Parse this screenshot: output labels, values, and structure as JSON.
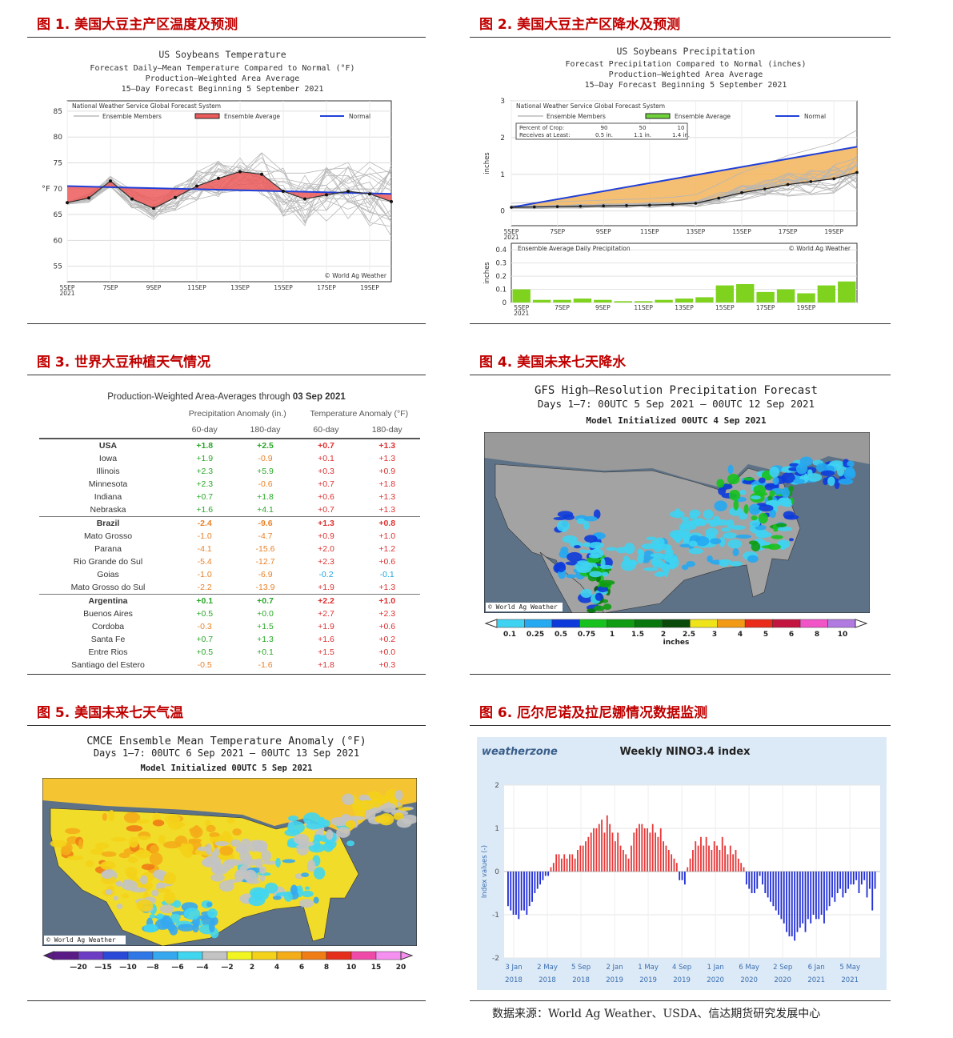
{
  "panels": {
    "p1": {
      "title": "图 1.  美国大豆主产区温度及预测"
    },
    "p2": {
      "title": "图 2.  美国大豆主产区降水及预测"
    },
    "p3": {
      "title": "图 3.  世界大豆种植天气情况"
    },
    "p4": {
      "title": "图 4.  美国未来七天降水"
    },
    "p5": {
      "title": "图 5.  美国未来七天气温"
    },
    "p6": {
      "title": "图 6.  厄尔尼诺及拉尼娜情况数据监测"
    }
  },
  "source": "数据来源：World Ag Weather、USDA、信达期货研究发展中心",
  "chart_data": [
    {
      "id": "temp",
      "type": "line",
      "title": "US Soybeans Temperature",
      "subtitle_lines": [
        "Forecast Daily—Mean Temperature Compared to Normal (°F)",
        "Production—Weighted Area Average",
        "15—Day Forecast Beginning 5 September 2021"
      ],
      "box_label": "National Weather Service Global Forecast System",
      "legend": {
        "members": "Ensemble Members",
        "average": "Ensemble Average",
        "normal": "Normal"
      },
      "credit": "© World Ag Weather",
      "ylabel": "°F",
      "ylim": [
        52,
        87
      ],
      "yticks": [
        "55",
        "60",
        "65",
        "70",
        "75",
        "80",
        "85"
      ],
      "xticks": [
        "5SEP",
        "7SEP",
        "9SEP",
        "11SEP",
        "13SEP",
        "15SEP",
        "17SEP",
        "19SEP"
      ],
      "xtick_year": "2021",
      "days": [
        0,
        1,
        2,
        3,
        4,
        5,
        6,
        7,
        8,
        9,
        10,
        11,
        12,
        13,
        14,
        15
      ],
      "average": [
        67.3,
        68.2,
        71.5,
        68.0,
        66.2,
        68.3,
        70.5,
        72.0,
        73.3,
        72.8,
        69.5,
        68.0,
        68.8,
        69.5,
        69.0,
        67.5
      ],
      "normal": [
        70.5,
        69.0
      ]
    },
    {
      "id": "precip",
      "type": "line",
      "title": "US Soybeans Precipitation",
      "subtitle_lines": [
        "Forecast Precipitation Compared to Normal (inches)",
        "Production—Weighted Area Average",
        "15—Day Forecast Beginning 5 September 2021"
      ],
      "box_label": "National Weather Service Global Forecast System",
      "legend": {
        "members": "Ensemble Members",
        "average": "Ensemble Average",
        "normal": "Normal"
      },
      "crop_table": {
        "row1_label": "Percent of Crop:",
        "row1": [
          "90",
          "50",
          "10"
        ],
        "row2_label": "Receives at Least:",
        "row2": [
          "0.5 in.",
          "1.1 in.",
          "1.4 in."
        ]
      },
      "ylabel": "inches",
      "ylim": [
        -0.4,
        3
      ],
      "yticks": [
        "0",
        "1",
        "2",
        "3"
      ],
      "xticks": [
        "5SEP",
        "7SEP",
        "9SEP",
        "11SEP",
        "13SEP",
        "15SEP",
        "17SEP",
        "19SEP"
      ],
      "xtick_year": "2021",
      "average": [
        0.1,
        0.11,
        0.12,
        0.13,
        0.14,
        0.15,
        0.16,
        0.18,
        0.21,
        0.35,
        0.5,
        0.6,
        0.72,
        0.8,
        0.88,
        1.05
      ],
      "normal": [
        0.1,
        1.75
      ],
      "daily": {
        "label": "Ensemble Average Daily Precipitation",
        "credit": "© World Ag Weather",
        "ylabel": "inches",
        "ylim": [
          0,
          0.45
        ],
        "yticks": [
          "0",
          "0.1",
          "0.2",
          "0.3",
          "0.4"
        ],
        "values": [
          0.1,
          0.02,
          0.02,
          0.03,
          0.02,
          0.01,
          0.01,
          0.02,
          0.03,
          0.04,
          0.13,
          0.14,
          0.08,
          0.1,
          0.07,
          0.13,
          0.16
        ]
      }
    },
    {
      "id": "anomaly",
      "type": "table",
      "title_prefix": "Production-Weighted Area-Averages through",
      "title_date": "03 Sep 2021",
      "group_headers": [
        "Precipitation Anomaly (in.)",
        "Temperature Anomaly (°F)"
      ],
      "columns": [
        "60-day",
        "180-day",
        "60-day",
        "180-day"
      ],
      "rows": [
        {
          "name": "USA",
          "v": [
            "+1.8",
            "+2.5",
            "+0.7",
            "+1.3"
          ],
          "bold": true,
          "sep": false
        },
        {
          "name": "Iowa",
          "v": [
            "+1.9",
            "-0.9",
            "+0.1",
            "+1.3"
          ],
          "bold": false,
          "sep": false
        },
        {
          "name": "Illinois",
          "v": [
            "+2.3",
            "+5.9",
            "+0.3",
            "+0.9"
          ],
          "bold": false,
          "sep": false
        },
        {
          "name": "Minnesota",
          "v": [
            "+2.3",
            "-0.6",
            "+0.7",
            "+1.8"
          ],
          "bold": false,
          "sep": false
        },
        {
          "name": "Indiana",
          "v": [
            "+0.7",
            "+1.8",
            "+0.6",
            "+1.3"
          ],
          "bold": false,
          "sep": false
        },
        {
          "name": "Nebraska",
          "v": [
            "+1.6",
            "+4.1",
            "+0.7",
            "+1.3"
          ],
          "bold": false,
          "sep": false
        },
        {
          "name": "Brazil",
          "v": [
            "-2.4",
            "-9.6",
            "+1.3",
            "+0.8"
          ],
          "bold": true,
          "sep": true
        },
        {
          "name": "Mato Grosso",
          "v": [
            "-1.0",
            "-4.7",
            "+0.9",
            "+1.0"
          ],
          "bold": false,
          "sep": false
        },
        {
          "name": "Parana",
          "v": [
            "-4.1",
            "-15.6",
            "+2.0",
            "+1.2"
          ],
          "bold": false,
          "sep": false
        },
        {
          "name": "Rio Grande do Sul",
          "v": [
            "-5.4",
            "-12.7",
            "+2.3",
            "+0.6"
          ],
          "bold": false,
          "sep": false
        },
        {
          "name": "Goias",
          "v": [
            "-1.0",
            "-6.9",
            "-0.2",
            "-0.1"
          ],
          "bold": false,
          "sep": false
        },
        {
          "name": "Mato Grosso do Sul",
          "v": [
            "-2.2",
            "-13.9",
            "+1.9",
            "+1.3"
          ],
          "bold": false,
          "sep": false
        },
        {
          "name": "Argentina",
          "v": [
            "+0.1",
            "+0.7",
            "+2.2",
            "+1.0"
          ],
          "bold": true,
          "sep": true
        },
        {
          "name": "Buenos Aires",
          "v": [
            "+0.5",
            "+0.0",
            "+2.7",
            "+2.3"
          ],
          "bold": false,
          "sep": false
        },
        {
          "name": "Cordoba",
          "v": [
            "-0.3",
            "+1.5",
            "+1.9",
            "+0.6"
          ],
          "bold": false,
          "sep": false
        },
        {
          "name": "Santa Fe",
          "v": [
            "+0.7",
            "+1.3",
            "+1.6",
            "+0.2"
          ],
          "bold": false,
          "sep": false
        },
        {
          "name": "Entre Rios",
          "v": [
            "+0.5",
            "+0.1",
            "+1.5",
            "+0.0"
          ],
          "bold": false,
          "sep": false
        },
        {
          "name": "Santiago del Estero",
          "v": [
            "-0.5",
            "-1.6",
            "+1.8",
            "+0.3"
          ],
          "bold": false,
          "sep": false
        }
      ]
    },
    {
      "id": "nino",
      "type": "bar",
      "brand": "weatherzone",
      "title": "Weekly NINO3.4 index",
      "ylabel": "Index values (-)",
      "ylim": [
        -2,
        2
      ],
      "yticks": [
        "-2",
        "-1",
        "0",
        "1",
        "2"
      ],
      "xticks": [
        {
          "line1": "3 Jan",
          "line2": "2018"
        },
        {
          "line1": "2 May",
          "line2": "2018"
        },
        {
          "line1": "5 Sep",
          "line2": "2018"
        },
        {
          "line1": "2 Jan",
          "line2": "2019"
        },
        {
          "line1": "1 May",
          "line2": "2019"
        },
        {
          "line1": "4 Sep",
          "line2": "2019"
        },
        {
          "line1": "1 Jan",
          "line2": "2020"
        },
        {
          "line1": "6 May",
          "line2": "2020"
        },
        {
          "line1": "2 Sep",
          "line2": "2020"
        },
        {
          "line1": "6 Jan",
          "line2": "2021"
        },
        {
          "line1": "5 May",
          "line2": "2021"
        }
      ],
      "values": [
        -0.8,
        -0.9,
        -1.0,
        -1.0,
        -1.1,
        -0.9,
        -0.9,
        -1.0,
        -0.8,
        -0.7,
        -0.5,
        -0.4,
        -0.3,
        -0.2,
        -0.1,
        -0.1,
        0.1,
        0.2,
        0.4,
        0.4,
        0.3,
        0.4,
        0.3,
        0.4,
        0.4,
        0.3,
        0.5,
        0.6,
        0.6,
        0.7,
        0.8,
        0.9,
        1.0,
        1.0,
        1.1,
        1.2,
        0.9,
        1.3,
        1.1,
        0.9,
        0.7,
        0.9,
        0.6,
        0.5,
        0.4,
        0.3,
        0.6,
        0.9,
        1.0,
        1.1,
        1.1,
        1.0,
        1.0,
        0.9,
        1.1,
        0.9,
        0.8,
        1.0,
        0.7,
        0.6,
        0.5,
        0.4,
        0.3,
        0.2,
        -0.2,
        -0.2,
        -0.3,
        0.1,
        0.3,
        0.5,
        0.7,
        0.6,
        0.8,
        0.6,
        0.8,
        0.6,
        0.5,
        0.7,
        0.6,
        0.5,
        0.8,
        0.6,
        0.4,
        0.6,
        0.4,
        0.5,
        0.3,
        0.2,
        0.1,
        -0.3,
        -0.4,
        -0.5,
        -0.5,
        -0.4,
        -0.1,
        -0.3,
        -0.5,
        -0.6,
        -0.7,
        -0.8,
        -0.9,
        -1.0,
        -1.1,
        -1.2,
        -1.4,
        -1.5,
        -1.5,
        -1.6,
        -1.4,
        -1.3,
        -1.2,
        -1.4,
        -1.1,
        -1.2,
        -1.0,
        -1.1,
        -1.1,
        -1.0,
        -1.2,
        -0.9,
        -0.8,
        -0.6,
        -0.7,
        -0.5,
        -0.4,
        -0.6,
        -0.5,
        -0.4,
        -0.3,
        -0.3,
        -0.2,
        -0.5,
        -0.3,
        -0.2,
        -0.6,
        -0.4,
        -0.9,
        -0.4
      ]
    }
  ],
  "maps": {
    "precip_map": {
      "title_lines": [
        "GFS High—Resolution Precipitation Forecast",
        "Days 1—7: 00UTC 5 Sep 2021 — 00UTC 12 Sep 2021",
        "Model Initialized 00UTC 4 Sep 2021"
      ],
      "credit": "© World Ag Weather",
      "scale_labels": [
        "0.1",
        "0.25",
        "0.5",
        "0.75",
        "1",
        "1.5",
        "2",
        "2.5",
        "3",
        "4",
        "5",
        "6",
        "8",
        "10"
      ],
      "scale_colors": [
        "#3fd3f2",
        "#25a9f1",
        "#0d3bdb",
        "#17c21e",
        "#0f9b12",
        "#08780e",
        "#0a4a0a",
        "#efe41a",
        "#f29a16",
        "#ea2a1a",
        "#c31540",
        "#f154c7",
        "#b07ae0"
      ],
      "unit": "inches"
    },
    "temp_map": {
      "title_lines": [
        "CMCE Ensemble Mean Temperature Anomaly (°F)",
        "Days 1—7: 00UTC 6 Sep 2021 — 00UTC 13 Sep 2021",
        "Model Initialized 00UTC 5 Sep 2021"
      ],
      "credit": "© World Ag Weather",
      "scale_labels": [
        "—20",
        "—15",
        "—10",
        "—8",
        "—6",
        "—4",
        "—2",
        "2",
        "4",
        "6",
        "8",
        "10",
        "15",
        "20"
      ],
      "scale_colors": [
        "#5a1b86",
        "#6d3cc4",
        "#2a49d8",
        "#2f76e6",
        "#35a8ef",
        "#41d6ef",
        "#c3c3c3",
        "#f2f51f",
        "#f4d21a",
        "#f4ac18",
        "#f07c16",
        "#e62e1d",
        "#f04aa8",
        "#f58ff0"
      ]
    }
  }
}
